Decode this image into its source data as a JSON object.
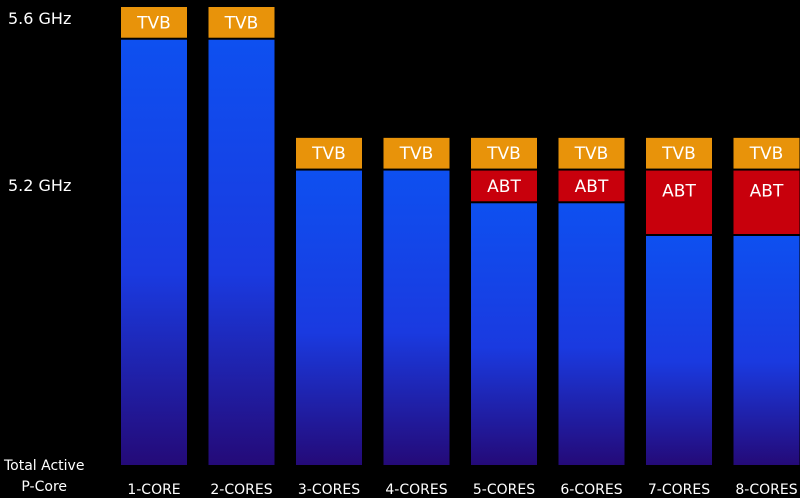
{
  "chart_data": {
    "type": "bar",
    "title": "",
    "xlabel": "Total Active P-Core",
    "ylabel": "",
    "categories": [
      "1-CORE",
      "2-CORES",
      "3-CORES",
      "4-CORES",
      "5-CORES",
      "6-CORES",
      "7-CORES",
      "8-CORES"
    ],
    "y_ticks": [
      {
        "label": "5.6 GHz",
        "value": 5.6
      },
      {
        "label": "5.2 GHz",
        "value": 5.2
      }
    ],
    "ylim": [
      4.2,
      5.6
    ],
    "series": [
      {
        "name": "",
        "values": [
          5.5,
          5.5,
          5.1,
          5.1,
          5.0,
          5.0,
          4.9,
          4.9
        ]
      },
      {
        "name": "ABT",
        "values": [
          0,
          0,
          0,
          0,
          0.1,
          0.1,
          0.2,
          0.2
        ]
      },
      {
        "name": "TVB",
        "values": [
          0.1,
          0.1,
          0.1,
          0.1,
          0.1,
          0.1,
          0.1,
          0.1
        ]
      }
    ],
    "legend": "none",
    "grid": false
  },
  "colors": {
    "bar_top": "#0e50f0",
    "bar_bottom": "#240a78",
    "abt": "#c8000c",
    "tvb": "#e8930a"
  },
  "x_header_line1": "Total Active",
  "x_header_line2": "P-Core"
}
